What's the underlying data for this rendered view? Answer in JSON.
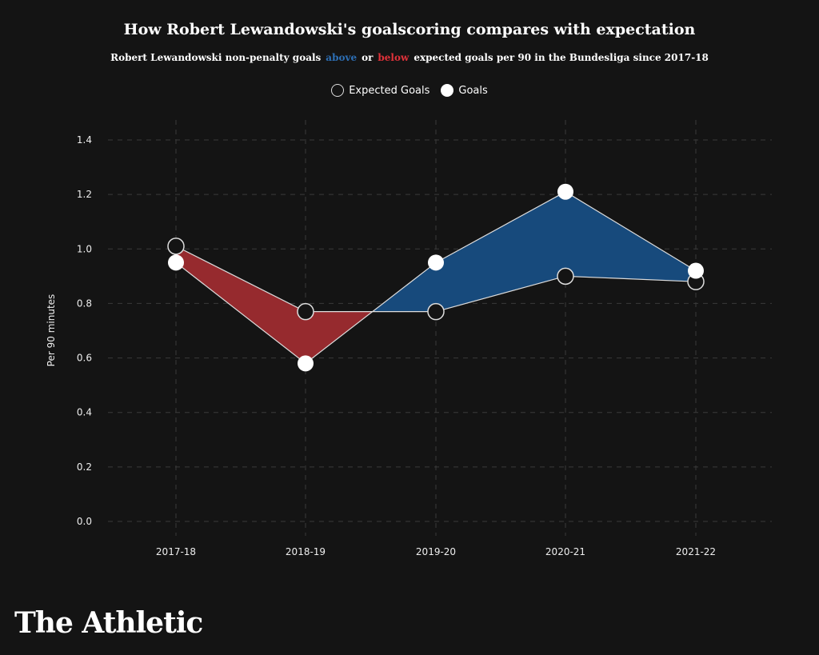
{
  "chart_data": {
    "type": "line",
    "title": "How Robert Lewandowski's goalscoring compares with expectation",
    "subtitle_parts": [
      "Robert Lewandowski non-penalty goals",
      "above",
      "or",
      "below",
      "expected goals per 90 in the Bundesliga since 2017-18"
    ],
    "ylabel": "Per 90 minutes",
    "xlabel": "",
    "categories": [
      "2017-18",
      "2018-19",
      "2019-20",
      "2020-21",
      "2021-22"
    ],
    "series": [
      {
        "name": "Expected Goals",
        "values": [
          1.01,
          0.77,
          0.77,
          0.9,
          0.88
        ]
      },
      {
        "name": "Goals",
        "values": [
          0.95,
          0.58,
          0.95,
          1.21,
          0.92
        ]
      }
    ],
    "ylim": [
      0,
      1.4
    ],
    "yticks": [
      "0.0",
      "0.2",
      "0.4",
      "0.6",
      "0.8",
      "1.0",
      "1.2",
      "1.4"
    ],
    "grid": true,
    "legend_position": "top-center",
    "colors": {
      "above": "#174a7c",
      "below": "#962a2e",
      "above_text": "#2d6fb5",
      "below_text": "#e0323a",
      "background": "#141414"
    }
  },
  "branding": {
    "logo": "The Athletic"
  }
}
